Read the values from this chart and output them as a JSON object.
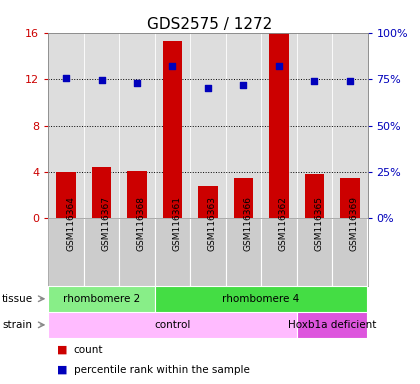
{
  "title": "GDS2575 / 1272",
  "samples": [
    "GSM116364",
    "GSM116367",
    "GSM116368",
    "GSM116361",
    "GSM116363",
    "GSM116366",
    "GSM116362",
    "GSM116365",
    "GSM116369"
  ],
  "counts": [
    4.0,
    4.4,
    4.1,
    15.3,
    2.8,
    3.5,
    16.0,
    3.8,
    3.5
  ],
  "percentile_left_scale": [
    12.1,
    11.9,
    11.7,
    13.1,
    11.25,
    11.5,
    13.15,
    11.85,
    11.85
  ],
  "ylim_left": [
    0,
    16
  ],
  "ylim_right": [
    0,
    100
  ],
  "yticks_left": [
    0,
    4,
    8,
    12,
    16
  ],
  "yticks_right": [
    0,
    25,
    50,
    75,
    100
  ],
  "ytick_labels_left": [
    "0",
    "4",
    "8",
    "12",
    "16"
  ],
  "ytick_labels_right": [
    "0%",
    "25%",
    "50%",
    "75%",
    "100%"
  ],
  "bar_color": "#cc0000",
  "dot_color": "#0000bb",
  "tissue_groups": [
    {
      "label": "rhombomere 2",
      "start": 0,
      "end": 3,
      "color": "#88ee88"
    },
    {
      "label": "rhombomere 4",
      "start": 3,
      "end": 9,
      "color": "#44dd44"
    }
  ],
  "strain_groups": [
    {
      "label": "control",
      "start": 0,
      "end": 7,
      "color": "#ffbbff"
    },
    {
      "label": "Hoxb1a deficient",
      "start": 7,
      "end": 9,
      "color": "#dd55dd"
    }
  ],
  "legend_count_label": "count",
  "legend_percentile_label": "percentile rank within the sample",
  "plot_bg": "#dddddd",
  "label_area_bg": "#cccccc",
  "title_fontsize": 11,
  "axis_fontsize": 8,
  "sample_fontsize": 6.5,
  "row_fontsize": 7.5,
  "legend_fontsize": 7.5
}
